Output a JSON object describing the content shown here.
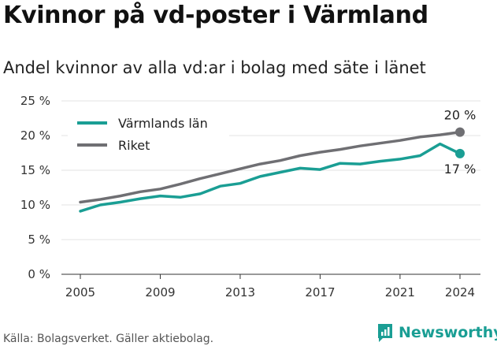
{
  "header": {
    "title": "Kvinnor på vd-poster i Värmland",
    "subtitle": "Andel kvinnor av alla vd:ar i bolag med säte i länet"
  },
  "footer": {
    "source": "Källa: Bolagsverket. Gäller aktiebolag.",
    "brand": "Newsworthy",
    "brand_color": "#1a9e94"
  },
  "chart_data": {
    "type": "line",
    "x": [
      2005,
      2006,
      2007,
      2008,
      2009,
      2010,
      2011,
      2012,
      2013,
      2014,
      2015,
      2016,
      2017,
      2018,
      2019,
      2020,
      2021,
      2022,
      2023,
      2024
    ],
    "xticks": [
      2005,
      2009,
      2013,
      2017,
      2021,
      2024
    ],
    "ylim": [
      0,
      25
    ],
    "yticks": [
      {
        "value": 0,
        "label": "0 %"
      },
      {
        "value": 5,
        "label": "5 %"
      },
      {
        "value": 10,
        "label": "10 %"
      },
      {
        "value": 15,
        "label": "15 %"
      },
      {
        "value": 20,
        "label": "20 %"
      },
      {
        "value": 25,
        "label": "25 %"
      }
    ],
    "grid": true,
    "legend": "top-left",
    "series": [
      {
        "name": "Värmlands län",
        "color": "#1a9e94",
        "values": [
          9.1,
          10.0,
          10.4,
          10.9,
          11.3,
          11.1,
          11.6,
          12.7,
          13.1,
          14.1,
          14.7,
          15.3,
          15.1,
          16.0,
          15.9,
          16.3,
          16.6,
          17.1,
          18.8,
          17.4
        ],
        "end_label": "17 %"
      },
      {
        "name": "Riket",
        "color": "#6f6f73",
        "values": [
          10.4,
          10.8,
          11.3,
          11.9,
          12.3,
          13.0,
          13.8,
          14.5,
          15.2,
          15.9,
          16.4,
          17.1,
          17.6,
          18.0,
          18.5,
          18.9,
          19.3,
          19.8,
          20.1,
          20.5
        ],
        "end_label": "20 %"
      }
    ]
  }
}
